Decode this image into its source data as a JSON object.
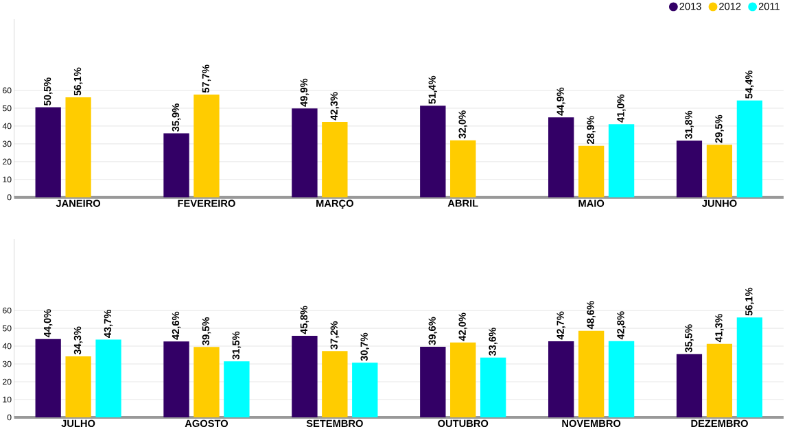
{
  "chart_data": [
    {
      "type": "bar",
      "categories": [
        "JANEIRO",
        "FEVEREIRO",
        "MARÇO",
        "ABRIL",
        "MAIO",
        "JUNHO"
      ],
      "ylim": [
        0,
        100
      ],
      "yticks": [
        0,
        10,
        20,
        30,
        40,
        50,
        60
      ],
      "grid": "y",
      "legend": "top right",
      "series": [
        {
          "name": "2013",
          "color": "#330066",
          "values": [
            50.5,
            35.9,
            49.9,
            51.4,
            44.9,
            31.8
          ],
          "value_labels": [
            "50,5%",
            "35,9%",
            "49,9%",
            "51,4%",
            "44,9%",
            "31,8%"
          ]
        },
        {
          "name": "2012",
          "color": "#ffcc00",
          "values": [
            56.1,
            57.7,
            42.3,
            32.0,
            28.9,
            29.5
          ],
          "value_labels": [
            "56,1%",
            "57,7%",
            "42,3%",
            "32,0%",
            "28,9%",
            "29,5%"
          ]
        },
        {
          "name": "2011",
          "color": "#00ffff",
          "values": [
            null,
            null,
            null,
            null,
            41.0,
            54.4
          ],
          "value_labels": [
            null,
            null,
            null,
            null,
            "41,0%",
            "54,4%"
          ]
        }
      ]
    },
    {
      "type": "bar",
      "categories": [
        "JULHO",
        "AGOSTO",
        "SETEMBRO",
        "OUTUBRO",
        "NOVEMBRO",
        "DEZEMBRO"
      ],
      "ylim": [
        0,
        100
      ],
      "yticks": [
        0,
        10,
        20,
        30,
        40,
        50,
        60
      ],
      "grid": "y",
      "series": [
        {
          "color": "#330066",
          "values": [
            44.0,
            42.6,
            45.8,
            39.6,
            42.7,
            35.5
          ],
          "value_labels": [
            "44,0%",
            "42,6%",
            "45,8%",
            "39,6%",
            "42,7%",
            "35,5%"
          ]
        },
        {
          "color": "#ffcc00",
          "values": [
            34.3,
            39.5,
            37.2,
            42.0,
            48.6,
            41.3
          ],
          "value_labels": [
            "34,3%",
            "39,5%",
            "37,2%",
            "42,0%",
            "48,6%",
            "41,3%"
          ]
        },
        {
          "color": "#00ffff",
          "values": [
            43.7,
            31.5,
            30.7,
            33.6,
            42.8,
            56.1
          ],
          "value_labels": [
            "43,7%",
            "31,5%",
            "30,7%",
            "33,6%",
            "42,8%",
            "56,1%"
          ]
        }
      ]
    }
  ]
}
